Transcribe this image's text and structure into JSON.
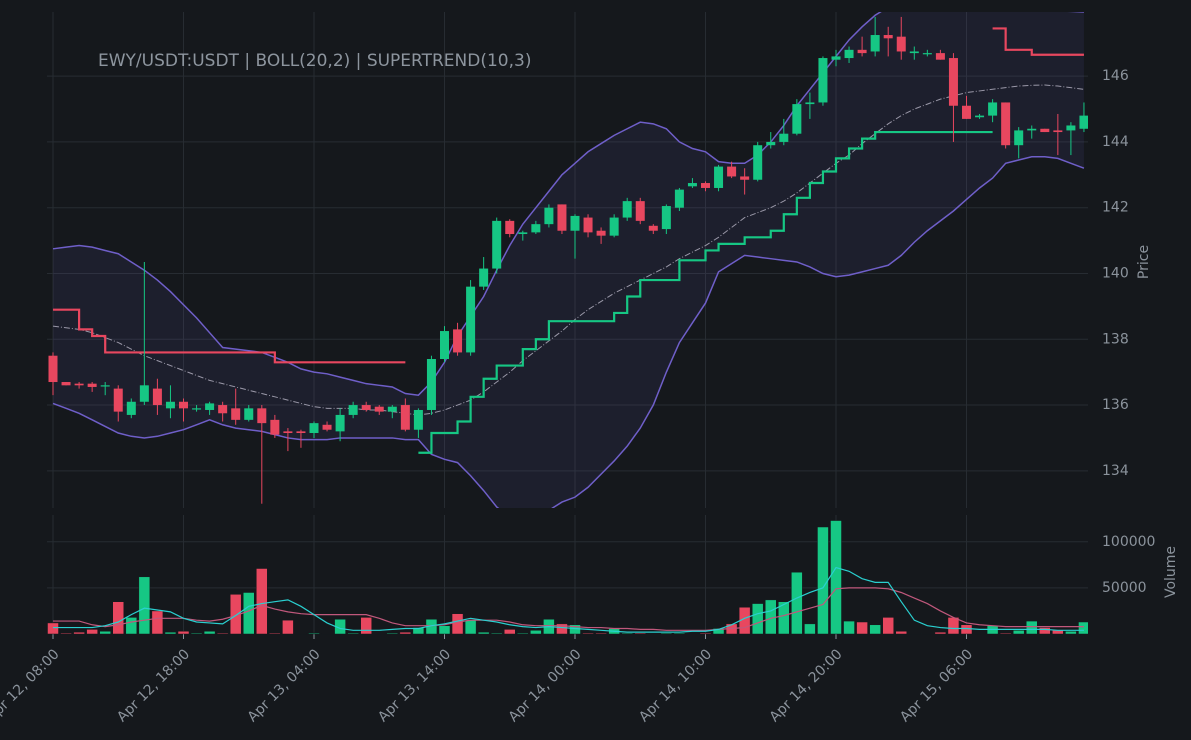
{
  "chart_data": {
    "type": "candlestick",
    "title": "EWY/USDT:USDT | BOLL(20,2) | SUPERTREND(10,3)",
    "y_label": "Price",
    "categories": [
      "Apr 12, 08:00",
      null,
      null,
      null,
      null,
      null,
      null,
      null,
      null,
      null,
      "Apr 12, 18:00",
      null,
      null,
      null,
      null,
      null,
      null,
      null,
      null,
      null,
      "Apr 13, 04:00",
      null,
      null,
      null,
      null,
      null,
      null,
      null,
      null,
      null,
      "Apr 13, 14:00",
      null,
      null,
      null,
      null,
      null,
      null,
      null,
      null,
      null,
      "Apr 14, 00:00",
      null,
      null,
      null,
      null,
      null,
      null,
      null,
      null,
      null,
      "Apr 14, 10:00",
      null,
      null,
      null,
      null,
      null,
      null,
      null,
      null,
      null,
      "Apr 14, 20:00",
      null,
      null,
      null,
      null,
      null,
      null,
      null,
      null,
      null,
      "Apr 15, 06:00",
      null,
      null,
      null,
      null,
      null,
      null,
      null,
      null,
      null
    ],
    "open": [
      137.5,
      136.7,
      136.65,
      136.65,
      136.6,
      136.5,
      135.7,
      136.1,
      136.5,
      135.9,
      136.1,
      135.9,
      135.85,
      136.0,
      135.9,
      135.55,
      135.9,
      135.55,
      135.2,
      135.2,
      135.15,
      135.4,
      135.2,
      135.7,
      136.0,
      135.95,
      135.8,
      136.0,
      135.25,
      135.85,
      137.4,
      138.3,
      137.6,
      139.6,
      140.15,
      141.6,
      141.2,
      141.25,
      141.5,
      142.1,
      141.3,
      141.7,
      141.3,
      141.15,
      141.7,
      142.2,
      141.45,
      141.35,
      142.0,
      142.65,
      142.75,
      142.6,
      143.25,
      142.95,
      142.85,
      143.9,
      144.0,
      144.25,
      145.15,
      145.2,
      146.5,
      146.55,
      146.8,
      146.75,
      147.25,
      147.2,
      146.7,
      146.7,
      146.7,
      146.55,
      145.1,
      144.75,
      144.8,
      145.2,
      143.9,
      144.35,
      144.4,
      144.35,
      144.35,
      144.4
    ],
    "high": [
      137.6,
      136.7,
      136.7,
      136.7,
      136.7,
      136.6,
      136.2,
      140.35,
      136.8,
      136.6,
      136.2,
      136.0,
      136.1,
      136.1,
      136.5,
      136.0,
      136.0,
      135.7,
      135.3,
      135.25,
      135.5,
      135.5,
      135.9,
      136.1,
      136.1,
      136.0,
      136.0,
      136.2,
      135.9,
      137.5,
      138.4,
      138.5,
      139.8,
      140.5,
      141.7,
      141.65,
      141.3,
      141.6,
      142.1,
      142.1,
      141.8,
      141.8,
      141.4,
      141.8,
      142.3,
      142.3,
      141.5,
      142.1,
      142.6,
      142.9,
      142.8,
      143.3,
      143.4,
      143.2,
      144.0,
      144.3,
      144.7,
      145.3,
      145.5,
      146.6,
      146.8,
      146.9,
      147.2,
      147.8,
      147.5,
      147.8,
      146.9,
      146.8,
      146.8,
      146.7,
      145.4,
      144.85,
      145.3,
      145.2,
      144.45,
      144.5,
      144.4,
      144.85,
      144.6,
      145.2
    ],
    "low": [
      136.3,
      136.6,
      136.5,
      136.4,
      136.3,
      135.5,
      135.6,
      136.0,
      135.7,
      135.6,
      135.5,
      135.8,
      135.7,
      135.5,
      135.4,
      135.5,
      133.0,
      135.0,
      134.6,
      134.7,
      135.0,
      135.2,
      134.9,
      135.6,
      135.8,
      135.7,
      135.6,
      135.2,
      135.0,
      135.7,
      137.3,
      137.5,
      137.5,
      139.5,
      140.0,
      141.1,
      141.0,
      141.2,
      141.4,
      141.2,
      140.45,
      141.1,
      140.9,
      141.1,
      141.6,
      141.5,
      141.2,
      141.2,
      141.9,
      142.6,
      142.5,
      142.5,
      142.9,
      142.4,
      142.8,
      143.8,
      143.9,
      144.2,
      144.7,
      145.1,
      146.3,
      146.4,
      146.6,
      146.6,
      146.6,
      146.5,
      146.5,
      146.6,
      146.5,
      144.0,
      144.7,
      144.7,
      144.6,
      143.8,
      143.5,
      144.1,
      144.3,
      143.6,
      143.6,
      144.3
    ],
    "close": [
      136.7,
      136.6,
      136.6,
      136.55,
      136.6,
      135.8,
      136.1,
      136.6,
      136.0,
      136.1,
      135.9,
      135.9,
      136.05,
      135.75,
      135.55,
      135.9,
      135.45,
      135.1,
      135.15,
      135.15,
      135.45,
      135.25,
      135.7,
      136.0,
      135.85,
      135.8,
      135.95,
      135.25,
      135.85,
      137.4,
      138.25,
      137.6,
      139.6,
      140.15,
      141.6,
      141.2,
      141.25,
      141.5,
      142.0,
      141.3,
      141.75,
      141.25,
      141.15,
      141.7,
      142.2,
      141.6,
      141.3,
      142.05,
      142.55,
      142.75,
      142.6,
      143.25,
      142.95,
      142.85,
      143.9,
      144.0,
      144.25,
      145.15,
      145.2,
      146.55,
      146.6,
      146.8,
      146.7,
      147.25,
      147.15,
      146.75,
      146.75,
      146.7,
      146.5,
      145.1,
      144.7,
      144.8,
      145.2,
      143.9,
      144.35,
      144.4,
      144.3,
      144.3,
      144.5,
      144.8
    ],
    "up_color": "#16c784",
    "down_color": "#e8475f",
    "ylim": [
      132.87,
      147.95
    ],
    "yticks": [
      134,
      136,
      138,
      140,
      142,
      144,
      146
    ],
    "grid": true,
    "bollinger": {
      "color": "#6f5fc9",
      "upper": [
        140.75,
        140.8,
        140.85,
        140.8,
        140.7,
        140.6,
        140.35,
        140.1,
        139.8,
        139.45,
        139.05,
        138.65,
        138.2,
        137.75,
        137.7,
        137.65,
        137.6,
        137.45,
        137.3,
        137.1,
        137.0,
        136.95,
        136.85,
        136.75,
        136.65,
        136.6,
        136.55,
        136.35,
        136.3,
        136.7,
        137.3,
        138.1,
        138.7,
        139.3,
        140.1,
        140.85,
        141.5,
        142.0,
        142.5,
        143.0,
        143.35,
        143.7,
        143.95,
        144.2,
        144.4,
        144.6,
        144.55,
        144.4,
        144.0,
        143.8,
        143.7,
        143.4,
        143.35,
        143.35,
        143.6,
        144.0,
        144.5,
        145.1,
        145.6,
        146.1,
        146.6,
        147.1,
        147.5,
        147.85,
        148.1,
        148.25,
        148.35,
        148.4,
        148.45,
        148.45,
        148.4,
        148.35,
        148.3,
        148.2,
        148.1,
        148.05,
        148.0,
        147.98,
        147.97,
        147.95
      ],
      "middle": [
        138.4,
        138.35,
        138.3,
        138.2,
        138.05,
        137.9,
        137.7,
        137.5,
        137.35,
        137.2,
        137.05,
        136.9,
        136.75,
        136.65,
        136.55,
        136.45,
        136.35,
        136.25,
        136.15,
        136.05,
        135.95,
        135.9,
        135.9,
        135.9,
        135.85,
        135.85,
        135.8,
        135.75,
        135.7,
        135.75,
        135.85,
        136.0,
        136.15,
        136.4,
        136.7,
        137.0,
        137.35,
        137.65,
        137.95,
        138.25,
        138.6,
        138.9,
        139.15,
        139.4,
        139.6,
        139.8,
        140.0,
        140.2,
        140.45,
        140.65,
        140.85,
        141.1,
        141.4,
        141.7,
        141.85,
        142.0,
        142.2,
        142.45,
        142.75,
        143.05,
        143.35,
        143.6,
        143.95,
        144.25,
        144.55,
        144.8,
        145.0,
        145.15,
        145.3,
        145.4,
        145.5,
        145.55,
        145.6,
        145.65,
        145.7,
        145.72,
        145.73,
        145.7,
        145.65,
        145.6
      ],
      "lower": [
        136.05,
        135.9,
        135.75,
        135.55,
        135.35,
        135.15,
        135.05,
        135.0,
        135.05,
        135.15,
        135.25,
        135.4,
        135.55,
        135.4,
        135.3,
        135.25,
        135.2,
        135.1,
        135.0,
        134.95,
        134.95,
        134.95,
        135.0,
        135.0,
        135.0,
        135.0,
        135.0,
        134.95,
        134.95,
        134.5,
        134.35,
        134.25,
        133.85,
        133.4,
        132.9,
        132.6,
        132.5,
        132.6,
        132.8,
        133.05,
        133.2,
        133.5,
        133.9,
        134.3,
        134.75,
        135.3,
        136.0,
        137.0,
        137.9,
        138.5,
        139.1,
        140.05,
        140.3,
        140.55,
        140.5,
        140.45,
        140.4,
        140.35,
        140.2,
        140.0,
        139.9,
        139.95,
        140.05,
        140.15,
        140.25,
        140.55,
        140.95,
        141.3,
        141.6,
        141.9,
        142.25,
        142.6,
        142.9,
        143.35,
        143.45,
        143.55,
        143.55,
        143.5,
        143.35,
        143.2
      ]
    },
    "supertrend": {
      "up_color": "#16c784",
      "down_color": "#e8475f",
      "up": [
        null,
        null,
        null,
        null,
        null,
        null,
        null,
        null,
        null,
        null,
        null,
        null,
        null,
        null,
        null,
        null,
        null,
        null,
        null,
        null,
        null,
        null,
        null,
        null,
        null,
        null,
        null,
        null,
        134.55,
        135.15,
        135.15,
        135.5,
        136.25,
        136.8,
        137.2,
        137.2,
        137.7,
        138.0,
        138.55,
        138.55,
        138.55,
        138.55,
        138.55,
        138.8,
        139.3,
        139.8,
        139.8,
        139.8,
        140.4,
        140.4,
        140.7,
        140.9,
        140.9,
        141.1,
        141.1,
        141.3,
        141.8,
        142.3,
        142.75,
        143.1,
        143.5,
        143.8,
        144.1,
        144.3,
        144.3,
        144.3,
        144.3,
        144.3,
        144.3,
        144.3,
        144.3,
        144.3,
        144.3,
        null,
        null,
        null,
        null,
        null,
        null,
        null
      ],
      "down": [
        138.9,
        138.9,
        138.3,
        138.1,
        137.6,
        137.6,
        137.6,
        137.6,
        137.6,
        137.6,
        137.6,
        137.6,
        137.6,
        137.6,
        137.6,
        137.6,
        137.6,
        137.3,
        137.3,
        137.3,
        137.3,
        137.3,
        137.3,
        137.3,
        137.3,
        137.3,
        137.3,
        137.3,
        null,
        null,
        null,
        null,
        null,
        null,
        null,
        null,
        null,
        null,
        null,
        null,
        null,
        null,
        null,
        null,
        null,
        null,
        null,
        null,
        null,
        null,
        null,
        null,
        null,
        null,
        null,
        null,
        null,
        null,
        null,
        null,
        null,
        null,
        null,
        null,
        null,
        null,
        null,
        null,
        null,
        null,
        null,
        null,
        147.45,
        146.8,
        146.8,
        146.65,
        146.65,
        146.65,
        146.65,
        146.65
      ]
    },
    "volume": {
      "y_label": "Volume",
      "ylim": [
        0,
        129000
      ],
      "yticks": [
        50000,
        100000
      ],
      "values": [
        12000,
        1000,
        2000,
        5000,
        3000,
        35000,
        18000,
        62000,
        25000,
        2000,
        3000,
        1000,
        3000,
        1000,
        43000,
        45000,
        71000,
        1000,
        15000,
        500,
        1000,
        500,
        16000,
        1000,
        18000,
        500,
        1000,
        2000,
        7000,
        16000,
        9000,
        22000,
        15000,
        2000,
        1000,
        5000,
        1000,
        4000,
        16000,
        11000,
        10000,
        1000,
        1000,
        6000,
        1000,
        1000,
        500,
        1000,
        1000,
        500,
        1000,
        6000,
        11000,
        29000,
        33000,
        37000,
        35000,
        67000,
        11000,
        116000,
        123000,
        14000,
        13000,
        10000,
        18000,
        3000,
        500,
        500,
        2000,
        18000,
        10000,
        500,
        9000,
        1000,
        4000,
        14000,
        7000,
        4000,
        3000,
        13000
      ],
      "ma_fast_color": "#2ad0d0",
      "ma_slow_color": "#c0587c",
      "ma_fast": [
        7000,
        7000,
        7000,
        7000,
        9000,
        13000,
        21000,
        28000,
        26000,
        24000,
        17000,
        13000,
        12000,
        11000,
        20000,
        30000,
        33000,
        35000,
        37000,
        30000,
        21000,
        12000,
        6000,
        4000,
        4000,
        4000,
        5000,
        6000,
        6000,
        9000,
        11000,
        14000,
        17000,
        15000,
        13000,
        10000,
        8000,
        7000,
        8000,
        7000,
        6000,
        5000,
        4000,
        3000,
        2000,
        2000,
        2000,
        2000,
        2000,
        3000,
        3000,
        5000,
        10000,
        17000,
        22000,
        25000,
        32000,
        39000,
        45000,
        50000,
        72000,
        68000,
        60000,
        56000,
        56000,
        35000,
        15000,
        9000,
        7000,
        6000,
        6000,
        5000,
        5000,
        5000,
        5000,
        5000,
        5000,
        4000,
        4000,
        4000
      ],
      "ma_slow": [
        14000,
        14000,
        14000,
        10000,
        8000,
        10000,
        13000,
        15000,
        17000,
        17000,
        17000,
        15000,
        14000,
        16000,
        20000,
        25000,
        31000,
        27000,
        24000,
        22000,
        21000,
        21000,
        21000,
        21000,
        21000,
        17000,
        12000,
        9000,
        9000,
        9000,
        10000,
        13000,
        15000,
        15000,
        15000,
        13000,
        10000,
        9000,
        9000,
        9000,
        8000,
        7000,
        7000,
        6000,
        6000,
        5000,
        5000,
        4000,
        4000,
        4000,
        4000,
        5000,
        6000,
        7000,
        12000,
        17000,
        20000,
        24000,
        28000,
        32000,
        49000,
        50000,
        50000,
        50000,
        49000,
        45000,
        39000,
        33000,
        25000,
        18000,
        12000,
        10000,
        9000,
        8000,
        8000,
        8000,
        8000,
        8000,
        8000,
        8000
      ]
    }
  }
}
